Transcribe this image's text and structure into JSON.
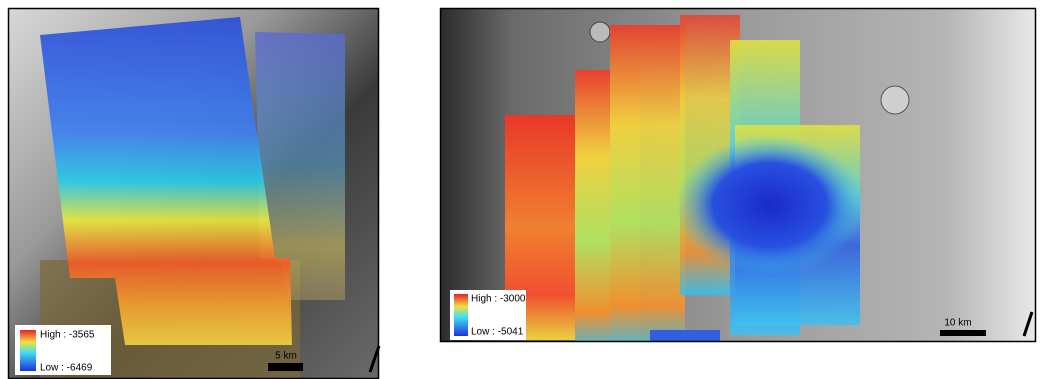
{
  "panels": [
    {
      "legend": {
        "high": "High : -3565",
        "low": "Low : -6469"
      },
      "scale_bar": "5 km"
    },
    {
      "legend": {
        "high": "High : -3000",
        "low": "Low : -5041"
      },
      "scale_bar": "10 km"
    }
  ]
}
